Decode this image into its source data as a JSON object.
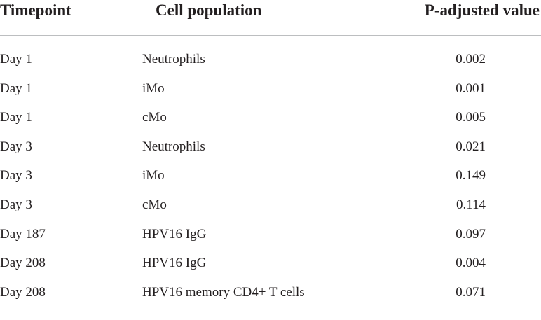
{
  "table": {
    "header": [
      "Timepoint",
      "Cell population",
      "P-adjusted value"
    ],
    "rows": [
      [
        "Day 1",
        "Neutrophils",
        "0.002"
      ],
      [
        "Day 1",
        "iMo",
        "0.001"
      ],
      [
        "Day 1",
        "cMo",
        "0.005"
      ],
      [
        "Day 3",
        "Neutrophils",
        "0.021"
      ],
      [
        "Day 3",
        "iMo",
        "0.149"
      ],
      [
        "Day 3",
        "cMo",
        "0.114"
      ],
      [
        "Day 187",
        "HPV16 IgG",
        "0.097"
      ],
      [
        "Day 208",
        "HPV16 IgG",
        "0.004"
      ],
      [
        "Day 208",
        "HPV16 memory CD4+ T cells",
        "0.071"
      ]
    ]
  }
}
